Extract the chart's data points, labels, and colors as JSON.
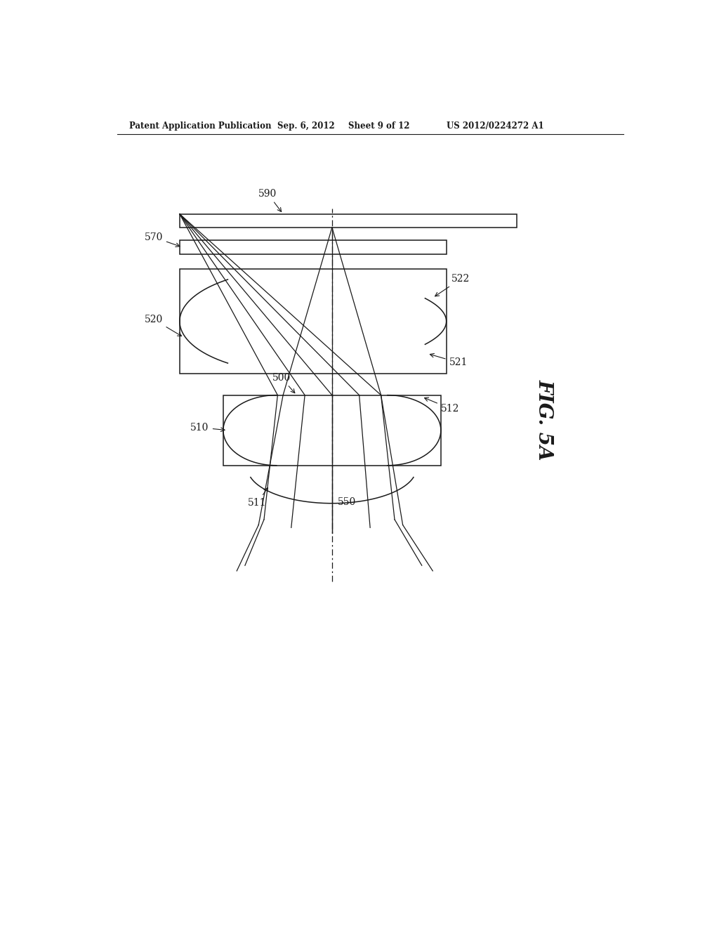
{
  "bg_color": "#ffffff",
  "line_color": "#1a1a1a",
  "header_text": "Patent Application Publication",
  "header_date": "Sep. 6, 2012",
  "header_sheet": "Sheet 9 of 12",
  "header_patent": "US 2012/0224272 A1",
  "fig_label": "FIG. 5A",
  "label_590": "590",
  "label_570": "570",
  "label_520": "520",
  "label_522": "522",
  "label_521": "521",
  "label_500": "500",
  "label_510": "510",
  "label_511": "511",
  "label_512": "512",
  "label_550": "550"
}
